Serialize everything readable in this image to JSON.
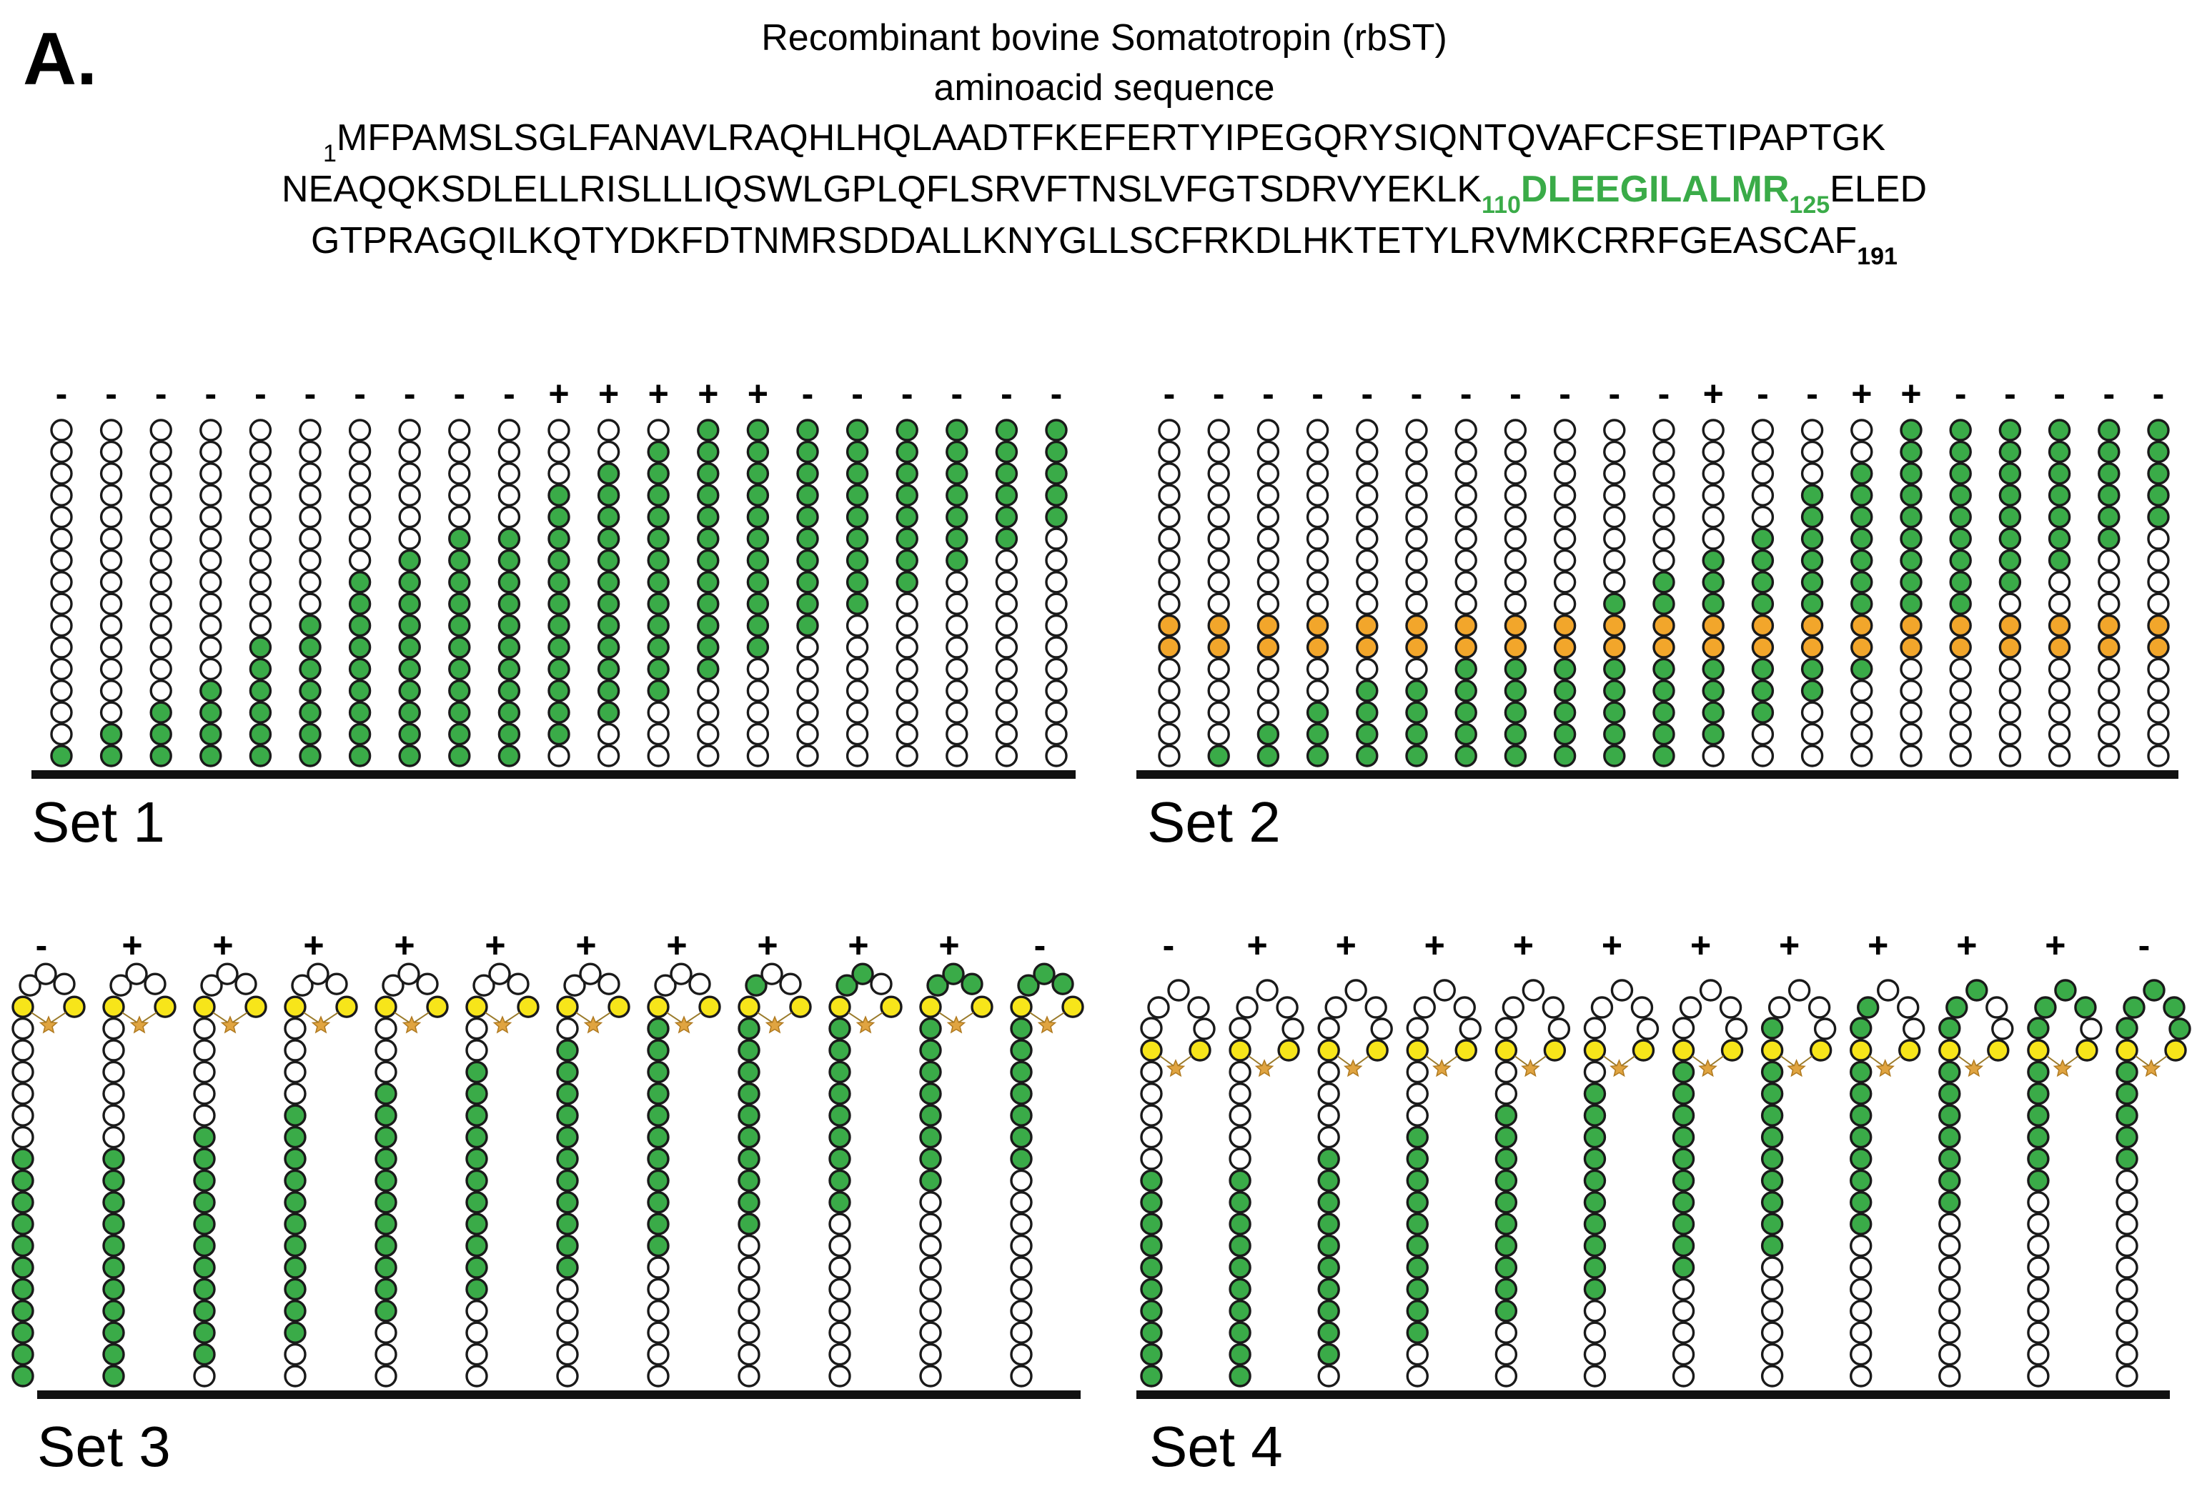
{
  "panel_letter": "A.",
  "title_lines": [
    "Recombinant bovine Somatotropin (rbST)",
    "aminoacid sequence"
  ],
  "sequence": {
    "line1": {
      "start_num": "1",
      "text": "MFPAMSLSGLFANAVLRAQHLHQLAADTFKEFERTYIPEGQRYSIQNTQVAFCFSETIPAPTGK"
    },
    "line2": {
      "pre": "NEAQQKSDLELLRISLLLIQSWLGPLQFLSRVFTNSLVFGTSDRVYEKLK",
      "num_before": "110",
      "highlight": "DLEEGILALMR",
      "num_after": "125",
      "post": "ELED"
    },
    "line3": {
      "text": "GTPRAGQILKQTYDKFDTNMRSDDALLKNYGLLSCFRKDLHKTETYLRVMKCRRFGEASCAF",
      "end_num": "191"
    }
  },
  "colors": {
    "green": "#3aab48",
    "white": "#ffffff",
    "orange": "#f2a62b",
    "yellow": "#f7e51a",
    "star": "#e0a440",
    "outline": "#1a1a1a"
  },
  "sets": [
    {
      "name": "Set 1",
      "kind": "linear",
      "length": 16,
      "signs": [
        "-",
        "-",
        "-",
        "-",
        "-",
        "-",
        "-",
        "-",
        "-",
        "-",
        "+",
        "+",
        "+",
        "+",
        "+",
        "-",
        "-",
        "-",
        "-",
        "-",
        "-"
      ],
      "green_start": [
        0,
        0,
        0,
        0,
        0,
        0,
        0,
        0,
        0,
        0,
        1,
        2,
        3,
        4,
        5,
        6,
        7,
        8,
        9,
        10,
        11
      ],
      "green_count": [
        1,
        2,
        3,
        4,
        6,
        7,
        9,
        10,
        11,
        11,
        12,
        12,
        12,
        12,
        11,
        11,
        10,
        9,
        8,
        7,
        6
      ]
    },
    {
      "name": "Set 2",
      "kind": "linear",
      "length": 16,
      "marker_positions": [
        5,
        6
      ],
      "signs": [
        "-",
        "-",
        "-",
        "-",
        "-",
        "-",
        "-",
        "-",
        "-",
        "-",
        "-",
        "+",
        "-",
        "-",
        "+",
        "+",
        "-",
        "-",
        "-",
        "-",
        "-"
      ],
      "green_start": [
        0,
        0,
        0,
        0,
        0,
        0,
        0,
        0,
        0,
        0,
        0,
        1,
        2,
        3,
        4,
        6,
        7,
        8,
        9,
        10,
        11
      ],
      "green_count": [
        0,
        1,
        2,
        3,
        4,
        4,
        5,
        6,
        7,
        8,
        9,
        9,
        9,
        10,
        10,
        10,
        9,
        8,
        7,
        6,
        5
      ]
    },
    {
      "name": "Set 3",
      "kind": "loop",
      "stem_length": 17,
      "signs": [
        "-",
        "+",
        "+",
        "+",
        "+",
        "+",
        "+",
        "+",
        "+",
        "+",
        "+",
        "-"
      ],
      "green_start": [
        0,
        0,
        1,
        2,
        3,
        4,
        5,
        6,
        7,
        8,
        9,
        10
      ],
      "green_count": [
        11,
        11,
        11,
        11,
        11,
        11,
        11,
        11,
        11,
        11,
        11,
        11
      ]
    },
    {
      "name": "Set 4",
      "kind": "loop_big",
      "stem_length": 15,
      "signs": [
        "-",
        "+",
        "+",
        "+",
        "+",
        "+",
        "+",
        "+",
        "+",
        "+",
        "+",
        "-"
      ],
      "green_start": [
        0,
        0,
        1,
        2,
        3,
        4,
        5,
        6,
        7,
        8,
        9,
        10
      ],
      "green_count": [
        10,
        10,
        10,
        10,
        10,
        10,
        10,
        10,
        10,
        10,
        10,
        10
      ]
    }
  ]
}
